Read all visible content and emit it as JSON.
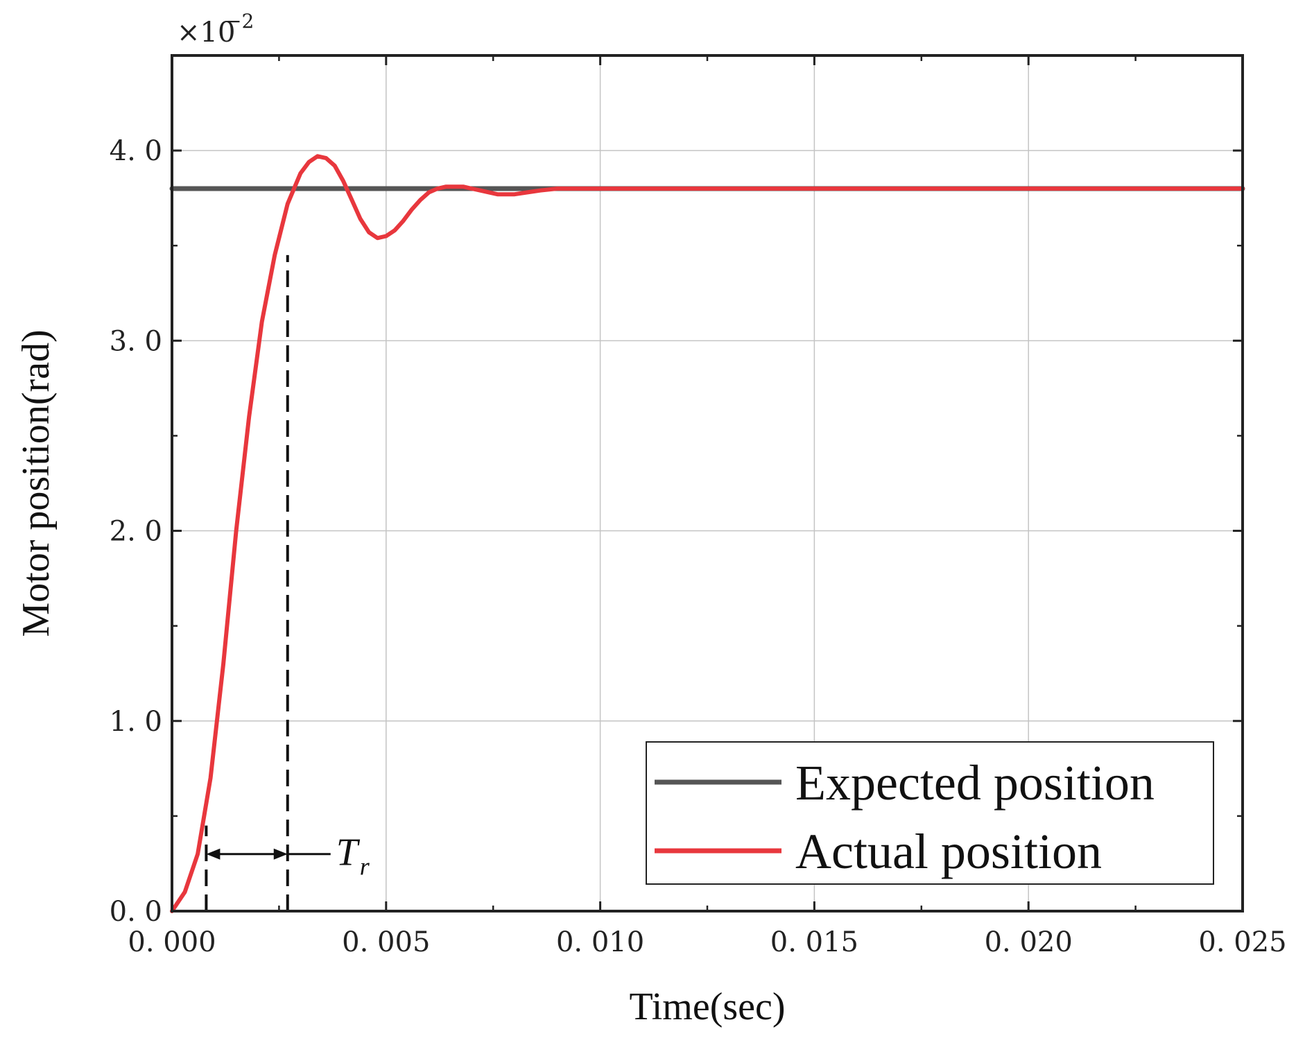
{
  "chart_data": {
    "type": "line",
    "title": "",
    "xlabel": "Time(sec)",
    "ylabel": "Motor position(rad)",
    "y_scale_multiplier": "×10",
    "y_scale_exponent": "−2",
    "xlim": [
      0,
      0.025
    ],
    "ylim": [
      0,
      4.5
    ],
    "x_ticks": [
      "0. 000",
      "0. 005",
      "0. 010",
      "0. 015",
      "0. 020",
      "0. 025"
    ],
    "x_tick_values": [
      0,
      0.005,
      0.01,
      0.015,
      0.02,
      0.025
    ],
    "y_ticks": [
      "0. 0",
      "1. 0",
      "2. 0",
      "3. 0",
      "4. 0"
    ],
    "y_tick_values": [
      0,
      1,
      2,
      3,
      4
    ],
    "grid": true,
    "legend_position": "bottom-right",
    "series": [
      {
        "name": "Expected position",
        "color": "#555555",
        "x": [
          0,
          0.025
        ],
        "y": [
          3.8,
          3.8
        ]
      },
      {
        "name": "Actual position",
        "color": "#e8373d",
        "x": [
          0,
          0.0003,
          0.0006,
          0.0009,
          0.0012,
          0.0015,
          0.0018,
          0.0021,
          0.0024,
          0.0027,
          0.003,
          0.0032,
          0.0034,
          0.0036,
          0.0038,
          0.004,
          0.0042,
          0.0044,
          0.0046,
          0.0048,
          0.005,
          0.0052,
          0.0054,
          0.0056,
          0.0058,
          0.006,
          0.0062,
          0.0064,
          0.0066,
          0.0068,
          0.007,
          0.0072,
          0.0074,
          0.0076,
          0.0078,
          0.008,
          0.0083,
          0.0086,
          0.009,
          0.0095,
          0.01,
          0.011,
          0.012,
          0.015,
          0.02,
          0.025
        ],
        "y": [
          0,
          0.1,
          0.3,
          0.7,
          1.3,
          2.0,
          2.6,
          3.1,
          3.45,
          3.72,
          3.88,
          3.94,
          3.97,
          3.96,
          3.92,
          3.84,
          3.74,
          3.64,
          3.57,
          3.54,
          3.55,
          3.58,
          3.63,
          3.69,
          3.74,
          3.78,
          3.8,
          3.81,
          3.81,
          3.81,
          3.8,
          3.79,
          3.78,
          3.77,
          3.77,
          3.77,
          3.78,
          3.79,
          3.8,
          3.8,
          3.8,
          3.8,
          3.8,
          3.8,
          3.8,
          3.8
        ]
      }
    ],
    "annotation": {
      "label": "T",
      "subscript": "r",
      "x_start": 0.0008,
      "x_end": 0.0027,
      "y_start_marker": 0.45,
      "y_end_marker": 3.45,
      "arrow_y": 0.3
    }
  }
}
